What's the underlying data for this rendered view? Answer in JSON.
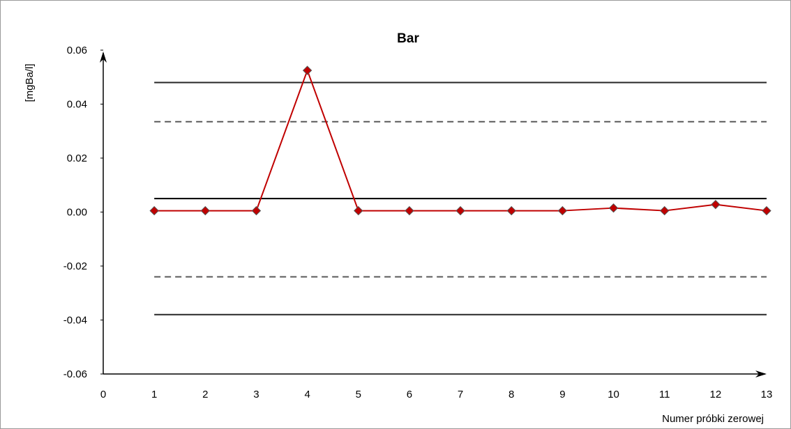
{
  "chart_data": {
    "type": "line",
    "title": "Bar",
    "xlabel": "Numer próbki zerowej",
    "ylabel": "[mgBa/l]",
    "xlim": [
      0,
      13
    ],
    "ylim": [
      -0.06,
      0.06
    ],
    "x_ticks": [
      "0",
      "1",
      "2",
      "3",
      "4",
      "5",
      "6",
      "7",
      "8",
      "9",
      "10",
      "11",
      "12",
      "13"
    ],
    "y_ticks": [
      "0.06",
      "0.04",
      "0.02",
      "0.00",
      "-0.02",
      "-0.04",
      "-0.06"
    ],
    "y_tick_values": [
      0.06,
      0.04,
      0.02,
      0.0,
      -0.02,
      -0.04,
      -0.06
    ],
    "grid": false,
    "series": [
      {
        "x": [
          1,
          2,
          3,
          4,
          5,
          6,
          7,
          8,
          9,
          10,
          11,
          12,
          13
        ],
        "values": [
          0.0005,
          0.0005,
          0.0005,
          0.0525,
          0.0005,
          0.0005,
          0.0005,
          0.0005,
          0.0005,
          0.0015,
          0.0005,
          0.0028,
          0.0005
        ],
        "color": "#c00000",
        "marker_color": "#c00000",
        "marker": "diamond"
      }
    ],
    "reference_lines": [
      {
        "value": 0.048,
        "style": "solid",
        "color": "#262626"
      },
      {
        "value": 0.0335,
        "style": "dashed",
        "color": "#595959"
      },
      {
        "value": 0.005,
        "style": "solid",
        "color": "#000000"
      },
      {
        "value": -0.024,
        "style": "dashed",
        "color": "#595959"
      },
      {
        "value": -0.038,
        "style": "solid",
        "color": "#262626"
      }
    ],
    "reference_line_x_range": [
      1,
      13
    ]
  }
}
